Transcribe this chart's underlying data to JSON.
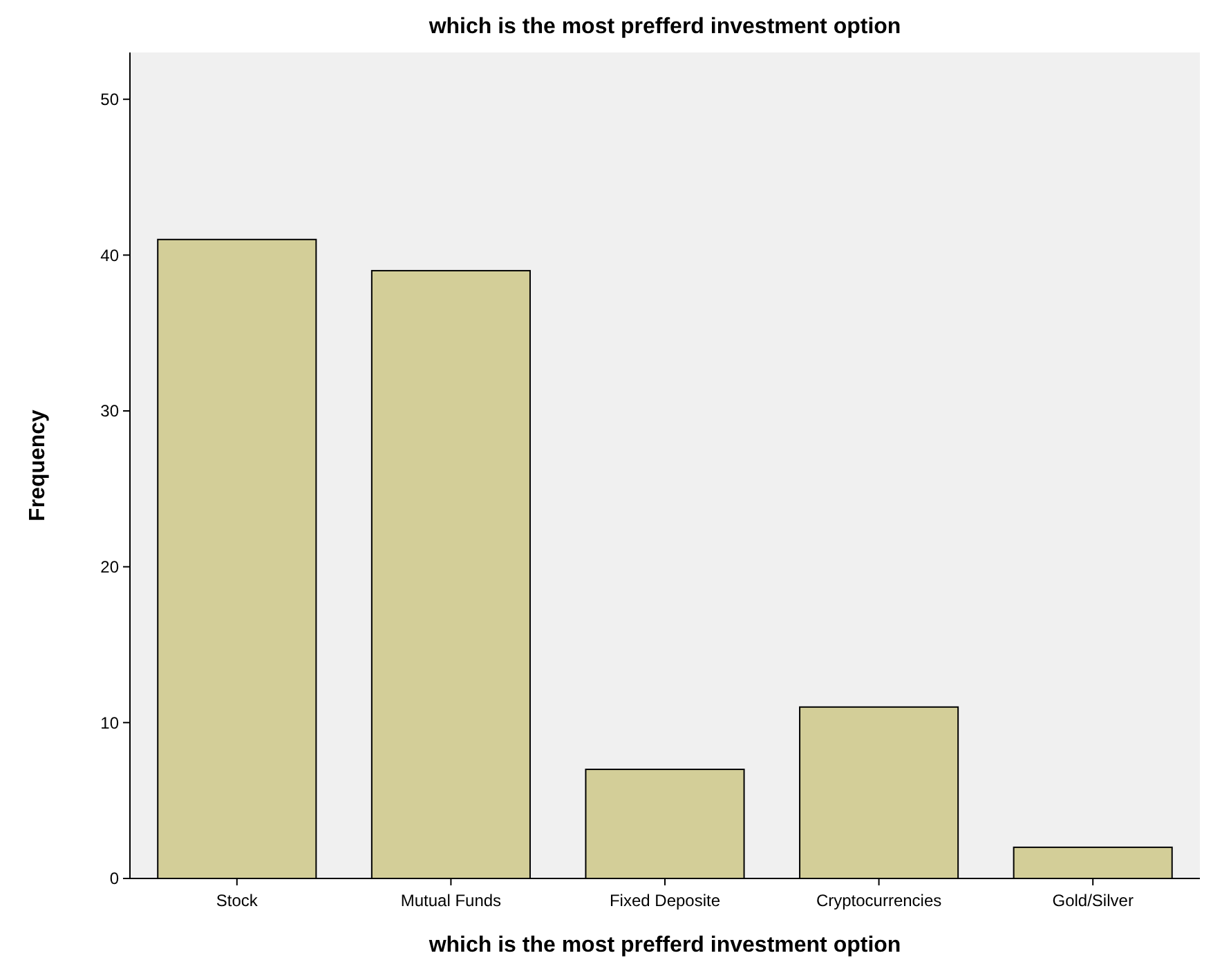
{
  "chart_data": {
    "type": "bar",
    "title": "which is the most prefferd investment option",
    "xlabel": "which is the most prefferd investment option",
    "ylabel": "Frequency",
    "categories": [
      "Stock",
      "Mutual Funds",
      "Fixed Deposite",
      "Cryptocurrencies",
      "Gold/Silver"
    ],
    "values": [
      41,
      39,
      7,
      11,
      2
    ],
    "color": "#d3ce98",
    "ylim": [
      0,
      53
    ],
    "yticks": [
      0,
      10,
      20,
      30,
      40,
      50
    ],
    "grid": false
  }
}
